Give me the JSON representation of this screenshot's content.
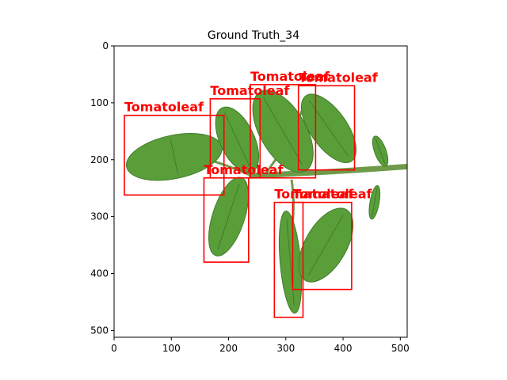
{
  "figure": {
    "title": "Ground Truth_34"
  },
  "axes": {
    "x_ticks": [
      0,
      100,
      200,
      300,
      400,
      500
    ],
    "y_ticks": [
      0,
      100,
      200,
      300,
      400,
      500
    ],
    "x_range": [
      0,
      512
    ],
    "y_range": [
      512,
      0
    ]
  },
  "image": {
    "background": "#ffffff",
    "leaf_color": "#5a9e3a",
    "leaf_dark": "#3f7d2a",
    "stem_color": "#6f9a4a"
  },
  "annotations": {
    "box_color": "#ff0000",
    "boxes": [
      {
        "label": "Tomatoleaf",
        "x0": 18,
        "y0": 122,
        "x1": 192,
        "y1": 262
      },
      {
        "label": "Tomatoleaf",
        "x0": 168,
        "y0": 93,
        "x1": 255,
        "y1": 232
      },
      {
        "label": "Tomatoleaf",
        "x0": 238,
        "y0": 68,
        "x1": 352,
        "y1": 232
      },
      {
        "label": "Tomatoleaf",
        "x0": 322,
        "y0": 70,
        "x1": 420,
        "y1": 218
      },
      {
        "label": "Tomatoleaf",
        "x0": 157,
        "y0": 232,
        "x1": 235,
        "y1": 380
      },
      {
        "label": "Tomatoleaf",
        "x0": 280,
        "y0": 275,
        "x1": 330,
        "y1": 477
      },
      {
        "label": "Tomatoleaf",
        "x0": 312,
        "y0": 275,
        "x1": 415,
        "y1": 428
      }
    ]
  }
}
